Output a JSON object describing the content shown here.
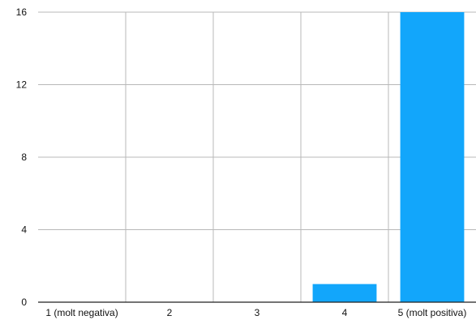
{
  "chart_data": {
    "type": "bar",
    "categories": [
      "1 (molt negativa)",
      "2",
      "3",
      "4",
      "5 (molt positiva)"
    ],
    "values": [
      0,
      0,
      0,
      1,
      16
    ],
    "title": "",
    "xlabel": "",
    "ylabel": "",
    "ylim": [
      0,
      16
    ],
    "yticks": [
      0,
      4,
      8,
      12,
      16
    ],
    "grid": true,
    "legend": "none",
    "bar_color": "#12a6fb",
    "grid_color": "#b8b8b8",
    "axis_color": "#222222"
  }
}
